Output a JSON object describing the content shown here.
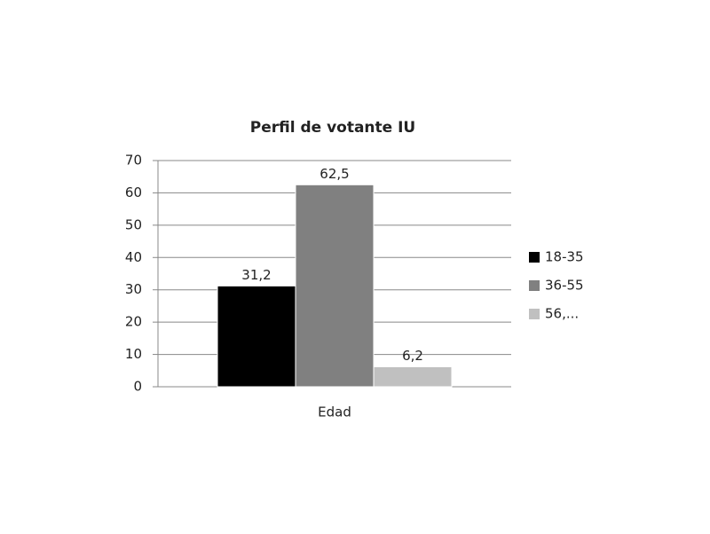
{
  "chart_data": {
    "type": "bar",
    "title": "Perfil de votante IU",
    "categories": [
      "Edad"
    ],
    "series": [
      {
        "name": "18-35",
        "color": "#000000",
        "values": [
          31.2
        ],
        "value_labels": [
          "31,2"
        ]
      },
      {
        "name": "36-55",
        "color": "#808080",
        "values": [
          62.5
        ],
        "value_labels": [
          "62,5"
        ]
      },
      {
        "name": "56,...",
        "color": "#c0c0c0",
        "values": [
          6.2
        ],
        "value_labels": [
          "6,2"
        ]
      }
    ],
    "ylim": [
      0,
      70
    ],
    "yticks": [
      0,
      10,
      20,
      30,
      40,
      50,
      60,
      70
    ],
    "grid": true,
    "legend": "right"
  }
}
